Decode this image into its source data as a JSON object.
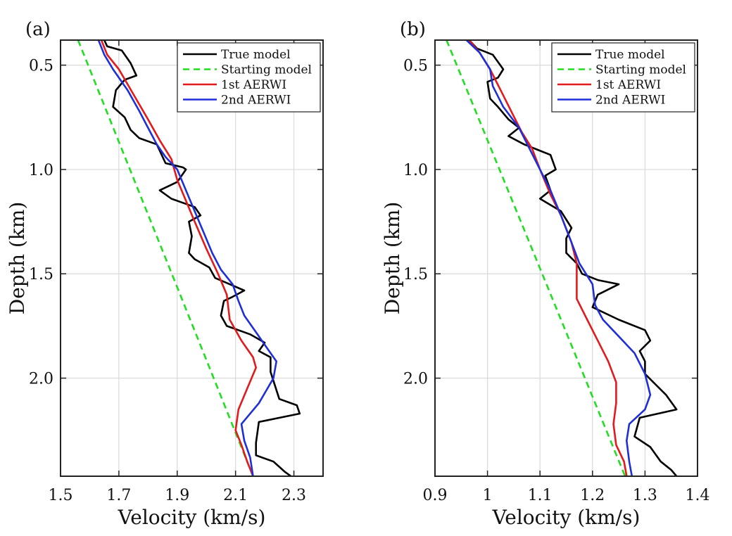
{
  "chart_data": [
    {
      "type": "line",
      "panel_label": "(a)",
      "xlabel": "Velocity (km/s)",
      "ylabel": "Depth (km)",
      "xlim": [
        1.5,
        2.4
      ],
      "ylim": [
        0.38,
        2.47
      ],
      "y_inverted": true,
      "xticks": [
        1.5,
        1.7,
        1.9,
        2.1,
        2.3
      ],
      "xtick_labels": [
        "1.5",
        "1.7",
        "1.9",
        "2.1",
        "2.3"
      ],
      "yticks": [
        0.5,
        1.0,
        1.5,
        2.0
      ],
      "ytick_labels": [
        "0.5",
        "1.0",
        "1.5",
        "2.0"
      ],
      "grid": true,
      "legend_position": "top-right",
      "series": [
        {
          "name": "True model",
          "color": "#000000",
          "dash": "solid",
          "points": [
            [
              1.65,
              0.38
            ],
            [
              1.66,
              0.41
            ],
            [
              1.71,
              0.43
            ],
            [
              1.74,
              0.49
            ],
            [
              1.76,
              0.55
            ],
            [
              1.72,
              0.57
            ],
            [
              1.69,
              0.62
            ],
            [
              1.68,
              0.7
            ],
            [
              1.72,
              0.75
            ],
            [
              1.74,
              0.81
            ],
            [
              1.77,
              0.85
            ],
            [
              1.83,
              0.88
            ],
            [
              1.86,
              0.97
            ],
            [
              1.92,
              0.99
            ],
            [
              1.93,
              1.0
            ],
            [
              1.9,
              1.06
            ],
            [
              1.84,
              1.1
            ],
            [
              1.88,
              1.14
            ],
            [
              1.96,
              1.18
            ],
            [
              1.98,
              1.22
            ],
            [
              1.94,
              1.25
            ],
            [
              1.95,
              1.32
            ],
            [
              1.94,
              1.4
            ],
            [
              1.96,
              1.43
            ],
            [
              2.01,
              1.47
            ],
            [
              2.03,
              1.52
            ],
            [
              2.08,
              1.55
            ],
            [
              2.13,
              1.58
            ],
            [
              2.09,
              1.61
            ],
            [
              2.06,
              1.63
            ],
            [
              2.05,
              1.7
            ],
            [
              2.07,
              1.75
            ],
            [
              2.15,
              1.79
            ],
            [
              2.2,
              1.83
            ],
            [
              2.18,
              1.87
            ],
            [
              2.22,
              1.9
            ],
            [
              2.22,
              1.97
            ],
            [
              2.25,
              2.1
            ],
            [
              2.31,
              2.13
            ],
            [
              2.32,
              2.17
            ],
            [
              2.18,
              2.21
            ],
            [
              2.17,
              2.31
            ],
            [
              2.17,
              2.37
            ],
            [
              2.23,
              2.4
            ],
            [
              2.27,
              2.45
            ],
            [
              2.29,
              2.47
            ]
          ]
        },
        {
          "name": "Starting model",
          "color": "#22dd22",
          "dash": "dashed",
          "points": [
            [
              1.56,
              0.38
            ],
            [
              2.16,
              2.47
            ]
          ]
        },
        {
          "name": "1st AERWI",
          "color": "#e31a1c",
          "dash": "solid",
          "points": [
            [
              1.64,
              0.38
            ],
            [
              1.66,
              0.45
            ],
            [
              1.7,
              0.52
            ],
            [
              1.75,
              0.64
            ],
            [
              1.8,
              0.76
            ],
            [
              1.84,
              0.86
            ],
            [
              1.88,
              0.95
            ],
            [
              1.9,
              1.05
            ],
            [
              1.93,
              1.15
            ],
            [
              1.96,
              1.25
            ],
            [
              2.0,
              1.38
            ],
            [
              2.04,
              1.5
            ],
            [
              2.07,
              1.6
            ],
            [
              2.08,
              1.72
            ],
            [
              2.12,
              1.82
            ],
            [
              2.16,
              1.9
            ],
            [
              2.17,
              1.95
            ],
            [
              2.14,
              2.05
            ],
            [
              2.11,
              2.15
            ],
            [
              2.1,
              2.25
            ],
            [
              2.12,
              2.32
            ],
            [
              2.14,
              2.4
            ],
            [
              2.16,
              2.47
            ]
          ]
        },
        {
          "name": "2nd AERWI",
          "color": "#1f2fd8",
          "dash": "solid",
          "points": [
            [
              1.63,
              0.38
            ],
            [
              1.65,
              0.45
            ],
            [
              1.68,
              0.52
            ],
            [
              1.73,
              0.62
            ],
            [
              1.77,
              0.72
            ],
            [
              1.8,
              0.8
            ],
            [
              1.83,
              0.88
            ],
            [
              1.86,
              0.94
            ],
            [
              1.9,
              1.0
            ],
            [
              1.93,
              1.1
            ],
            [
              1.96,
              1.2
            ],
            [
              1.99,
              1.3
            ],
            [
              2.02,
              1.4
            ],
            [
              2.05,
              1.48
            ],
            [
              2.09,
              1.55
            ],
            [
              2.11,
              1.63
            ],
            [
              2.13,
              1.7
            ],
            [
              2.17,
              1.78
            ],
            [
              2.2,
              1.84
            ],
            [
              2.24,
              1.92
            ],
            [
              2.23,
              2.0
            ],
            [
              2.18,
              2.12
            ],
            [
              2.12,
              2.22
            ],
            [
              2.13,
              2.3
            ],
            [
              2.15,
              2.38
            ],
            [
              2.16,
              2.47
            ]
          ]
        }
      ]
    },
    {
      "type": "line",
      "panel_label": "(b)",
      "xlabel": "Velocity (km/s)",
      "ylabel": "Depth (km)",
      "xlim": [
        0.9,
        1.4
      ],
      "ylim": [
        0.38,
        2.47
      ],
      "y_inverted": true,
      "xticks": [
        0.9,
        1.0,
        1.1,
        1.2,
        1.3,
        1.4
      ],
      "xtick_labels": [
        "0.9",
        "1",
        "1.1",
        "1.2",
        "1.3",
        "1.4"
      ],
      "yticks": [
        0.5,
        1.0,
        1.5,
        2.0
      ],
      "ytick_labels": [
        "0.5",
        "1.0",
        "1.5",
        "2.0"
      ],
      "grid": true,
      "legend_position": "top-right",
      "series": [
        {
          "name": "True model",
          "color": "#000000",
          "dash": "solid",
          "points": [
            [
              0.965,
              0.38
            ],
            [
              0.98,
              0.42
            ],
            [
              1.01,
              0.45
            ],
            [
              1.03,
              0.52
            ],
            [
              1.02,
              0.56
            ],
            [
              1.0,
              0.58
            ],
            [
              1.005,
              0.66
            ],
            [
              1.02,
              0.7
            ],
            [
              1.04,
              0.76
            ],
            [
              1.06,
              0.8
            ],
            [
              1.04,
              0.84
            ],
            [
              1.07,
              0.88
            ],
            [
              1.12,
              0.93
            ],
            [
              1.13,
              1.0
            ],
            [
              1.11,
              1.03
            ],
            [
              1.12,
              1.1
            ],
            [
              1.1,
              1.14
            ],
            [
              1.14,
              1.2
            ],
            [
              1.16,
              1.28
            ],
            [
              1.15,
              1.33
            ],
            [
              1.15,
              1.4
            ],
            [
              1.17,
              1.45
            ],
            [
              1.18,
              1.5
            ],
            [
              1.21,
              1.53
            ],
            [
              1.25,
              1.55
            ],
            [
              1.21,
              1.6
            ],
            [
              1.2,
              1.66
            ],
            [
              1.25,
              1.72
            ],
            [
              1.3,
              1.77
            ],
            [
              1.31,
              1.82
            ],
            [
              1.29,
              1.87
            ],
            [
              1.3,
              1.92
            ],
            [
              1.3,
              1.98
            ],
            [
              1.32,
              2.03
            ],
            [
              1.34,
              2.08
            ],
            [
              1.36,
              2.15
            ],
            [
              1.29,
              2.19
            ],
            [
              1.28,
              2.28
            ],
            [
              1.31,
              2.33
            ],
            [
              1.33,
              2.4
            ],
            [
              1.35,
              2.44
            ],
            [
              1.36,
              2.47
            ]
          ]
        },
        {
          "name": "Starting model",
          "color": "#22dd22",
          "dash": "dashed",
          "points": [
            [
              0.922,
              0.38
            ],
            [
              1.262,
              2.47
            ]
          ]
        },
        {
          "name": "1st AERWI",
          "color": "#e31a1c",
          "dash": "solid",
          "points": [
            [
              0.965,
              0.38
            ],
            [
              0.985,
              0.44
            ],
            [
              1.005,
              0.52
            ],
            [
              1.025,
              0.62
            ],
            [
              1.045,
              0.72
            ],
            [
              1.065,
              0.82
            ],
            [
              1.085,
              0.9
            ],
            [
              1.1,
              1.0
            ],
            [
              1.12,
              1.12
            ],
            [
              1.14,
              1.22
            ],
            [
              1.16,
              1.35
            ],
            [
              1.17,
              1.45
            ],
            [
              1.17,
              1.55
            ],
            [
              1.17,
              1.62
            ],
            [
              1.19,
              1.72
            ],
            [
              1.21,
              1.82
            ],
            [
              1.23,
              1.92
            ],
            [
              1.245,
              2.02
            ],
            [
              1.245,
              2.12
            ],
            [
              1.24,
              2.22
            ],
            [
              1.245,
              2.32
            ],
            [
              1.26,
              2.4
            ],
            [
              1.265,
              2.47
            ]
          ]
        },
        {
          "name": "2nd AERWI",
          "color": "#1f2fd8",
          "dash": "solid",
          "points": [
            [
              0.96,
              0.38
            ],
            [
              0.985,
              0.44
            ],
            [
              1.005,
              0.52
            ],
            [
              1.01,
              0.6
            ],
            [
              1.03,
              0.7
            ],
            [
              1.06,
              0.8
            ],
            [
              1.08,
              0.9
            ],
            [
              1.1,
              1.0
            ],
            [
              1.12,
              1.1
            ],
            [
              1.14,
              1.22
            ],
            [
              1.16,
              1.35
            ],
            [
              1.175,
              1.45
            ],
            [
              1.2,
              1.55
            ],
            [
              1.205,
              1.65
            ],
            [
              1.22,
              1.72
            ],
            [
              1.25,
              1.8
            ],
            [
              1.28,
              1.88
            ],
            [
              1.3,
              1.98
            ],
            [
              1.31,
              2.08
            ],
            [
              1.3,
              2.15
            ],
            [
              1.27,
              2.22
            ],
            [
              1.265,
              2.3
            ],
            [
              1.27,
              2.4
            ],
            [
              1.275,
              2.47
            ]
          ]
        }
      ]
    }
  ]
}
